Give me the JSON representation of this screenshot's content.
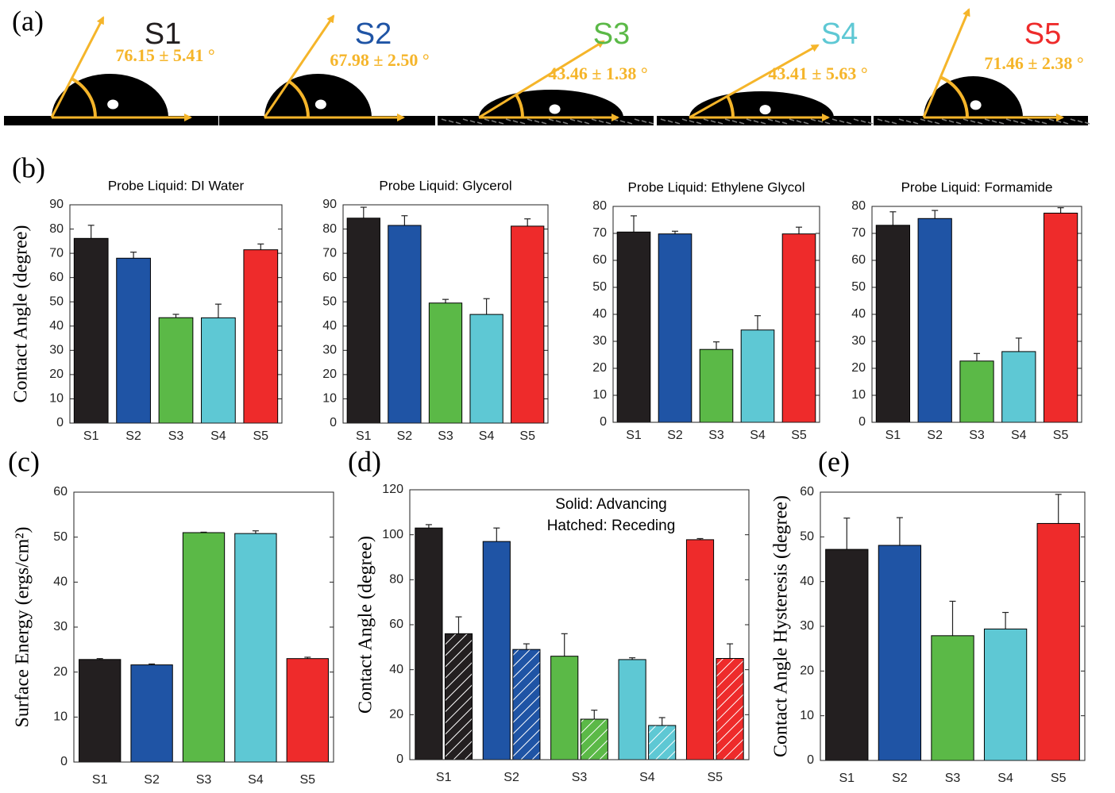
{
  "panel_a": {
    "label": "(a)",
    "droplets": [
      {
        "sample": "S1",
        "color": "#231f20",
        "angle": "76.15 ± 5.41 °"
      },
      {
        "sample": "S2",
        "color": "#1f54a5",
        "angle": "67.98 ± 2.50 °"
      },
      {
        "sample": "S3",
        "color": "#5bb947",
        "angle": "43.46 ± 1.38 °"
      },
      {
        "sample": "S4",
        "color": "#5ec8d4",
        "angle": "43.41 ± 5.63 °"
      },
      {
        "sample": "S5",
        "color": "#ee2b2b",
        "angle": "71.46 ± 2.38 °"
      }
    ]
  },
  "chart_data": [
    {
      "type": "bar",
      "panel": "(b)",
      "title": "Probe Liquid: DI Water",
      "ylabel": "Contact Angle (degree)",
      "categories": [
        "S1",
        "S2",
        "S3",
        "S4",
        "S5"
      ],
      "values": [
        76.15,
        67.98,
        43.46,
        43.41,
        71.46
      ],
      "errors": [
        5.41,
        2.5,
        1.38,
        5.63,
        2.38
      ],
      "colors": [
        "#231f20",
        "#1f54a5",
        "#5bb947",
        "#5ec8d4",
        "#ee2b2b"
      ],
      "ylim": [
        0,
        90
      ],
      "yticks": [
        0,
        10,
        20,
        30,
        40,
        50,
        60,
        70,
        80,
        90
      ]
    },
    {
      "type": "bar",
      "title": "Probe Liquid: Glycerol",
      "categories": [
        "S1",
        "S2",
        "S3",
        "S4",
        "S5"
      ],
      "values": [
        84.5,
        81.5,
        49.5,
        44.8,
        81.2
      ],
      "errors": [
        4.5,
        4,
        1.5,
        6.5,
        3
      ],
      "colors": [
        "#231f20",
        "#1f54a5",
        "#5bb947",
        "#5ec8d4",
        "#ee2b2b"
      ],
      "ylim": [
        0,
        90
      ],
      "yticks": [
        0,
        10,
        20,
        30,
        40,
        50,
        60,
        70,
        80,
        90
      ]
    },
    {
      "type": "bar",
      "title": "Probe Liquid: Ethylene Glycol",
      "categories": [
        "S1",
        "S2",
        "S3",
        "S4",
        "S5"
      ],
      "values": [
        70.5,
        69.8,
        27,
        34.2,
        69.8
      ],
      "errors": [
        6,
        1,
        2.8,
        5.3,
        2.5
      ],
      "colors": [
        "#231f20",
        "#1f54a5",
        "#5bb947",
        "#5ec8d4",
        "#ee2b2b"
      ],
      "ylim": [
        0,
        80
      ],
      "yticks": [
        0,
        10,
        20,
        30,
        40,
        50,
        60,
        70,
        80
      ]
    },
    {
      "type": "bar",
      "title": "Probe Liquid: Formamide",
      "categories": [
        "S1",
        "S2",
        "S3",
        "S4",
        "S5"
      ],
      "values": [
        73,
        75.5,
        22.7,
        26.2,
        77.5
      ],
      "errors": [
        5,
        3,
        2.8,
        5,
        2
      ],
      "colors": [
        "#231f20",
        "#1f54a5",
        "#5bb947",
        "#5ec8d4",
        "#ee2b2b"
      ],
      "ylim": [
        0,
        80
      ],
      "yticks": [
        0,
        10,
        20,
        30,
        40,
        50,
        60,
        70,
        80
      ]
    },
    {
      "type": "bar",
      "panel": "(c)",
      "ylabel": "Surface Energy (ergs/cm²)",
      "categories": [
        "S1",
        "S2",
        "S3",
        "S4",
        "S5"
      ],
      "values": [
        22.8,
        21.6,
        51,
        50.8,
        23
      ],
      "errors": [
        0.2,
        0.2,
        0.1,
        0.6,
        0.3
      ],
      "colors": [
        "#231f20",
        "#1f54a5",
        "#5bb947",
        "#5ec8d4",
        "#ee2b2b"
      ],
      "ylim": [
        0,
        60
      ],
      "yticks": [
        0,
        10,
        20,
        30,
        40,
        50,
        60
      ]
    },
    {
      "type": "grouped_bar",
      "panel": "(d)",
      "ylabel": "Contact Angle (degree)",
      "annotations": [
        "Solid: Advancing",
        "Hatched: Receding"
      ],
      "categories": [
        "S1",
        "S2",
        "S3",
        "S4",
        "S5"
      ],
      "colors": [
        "#231f20",
        "#1f54a5",
        "#5bb947",
        "#5ec8d4",
        "#ee2b2b"
      ],
      "series": [
        {
          "hatched": false,
          "values": [
            103,
            97,
            46,
            44.5,
            97.8
          ],
          "errors": [
            1.5,
            6,
            10,
            0.8,
            0.5
          ]
        },
        {
          "hatched": true,
          "values": [
            56,
            49,
            18,
            15.2,
            45
          ],
          "errors": [
            7.5,
            2.5,
            4,
            3.5,
            6.5
          ]
        }
      ],
      "ylim": [
        0,
        120
      ],
      "yticks": [
        0,
        20,
        40,
        60,
        80,
        100,
        120
      ]
    },
    {
      "type": "bar",
      "panel": "(e)",
      "ylabel": "Contact Angle Hysteresis (degree)",
      "categories": [
        "S1",
        "S2",
        "S3",
        "S4",
        "S5"
      ],
      "values": [
        47.2,
        48.1,
        27.9,
        29.4,
        53
      ],
      "errors": [
        7,
        6.2,
        7.7,
        3.7,
        6.5
      ],
      "colors": [
        "#231f20",
        "#1f54a5",
        "#5bb947",
        "#5ec8d4",
        "#ee2b2b"
      ],
      "ylim": [
        0,
        60
      ],
      "yticks": [
        0,
        10,
        20,
        30,
        40,
        50,
        60
      ]
    }
  ]
}
